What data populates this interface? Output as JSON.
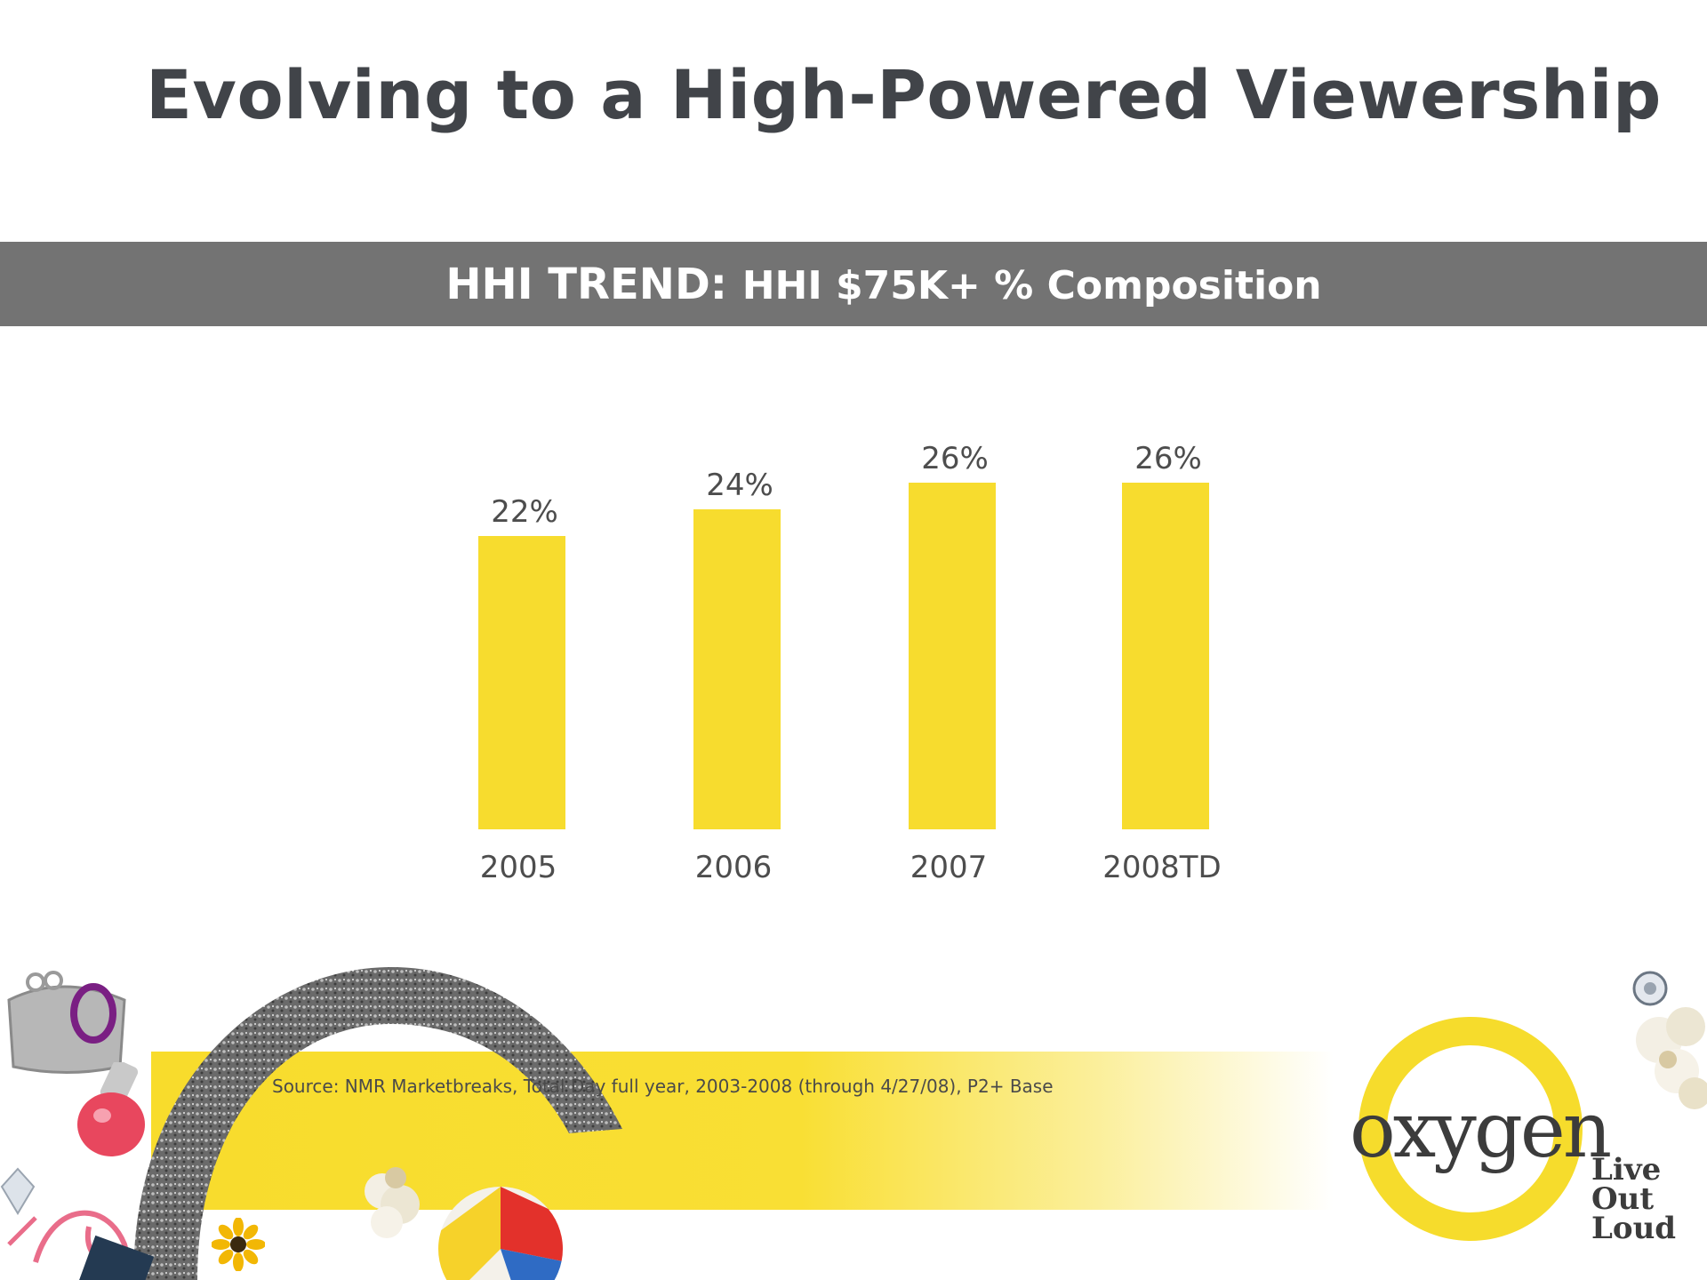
{
  "slide": {
    "title": "Evolving to a High-Powered Viewership",
    "band_title_bold": "HHI TREND:",
    "band_title_rest": "HHI $75K+ % Composition",
    "source": "Source: NMR Marketbreaks, Total Day full year, 2003-2008 (through 4/27/08), P2+ Base"
  },
  "brand": {
    "wordmark": "oxygen",
    "tagline": [
      "Live",
      "Out",
      "Loud"
    ]
  },
  "colors": {
    "bar": "#f7dc2e",
    "title": "#414449",
    "band": "#737373",
    "label": "#4d4d4d",
    "accent_purple": "#7a1f83"
  },
  "icons": [
    "coin-purse-icon",
    "nail-polish-icon",
    "popcorn-icon",
    "beach-ball-icon",
    "daisy-icon",
    "diamond-icon",
    "glitter-ring-icon"
  ],
  "chart_data": {
    "type": "bar",
    "categories": [
      "2005",
      "2006",
      "2007",
      "2008TD"
    ],
    "values": [
      22,
      24,
      26,
      26
    ],
    "data_labels": [
      "22%",
      "24%",
      "26%",
      "26%"
    ],
    "unit": "%",
    "title": "",
    "xlabel": "",
    "ylabel": "",
    "ylim": [
      0,
      26
    ],
    "grid": false,
    "legend": "none"
  }
}
